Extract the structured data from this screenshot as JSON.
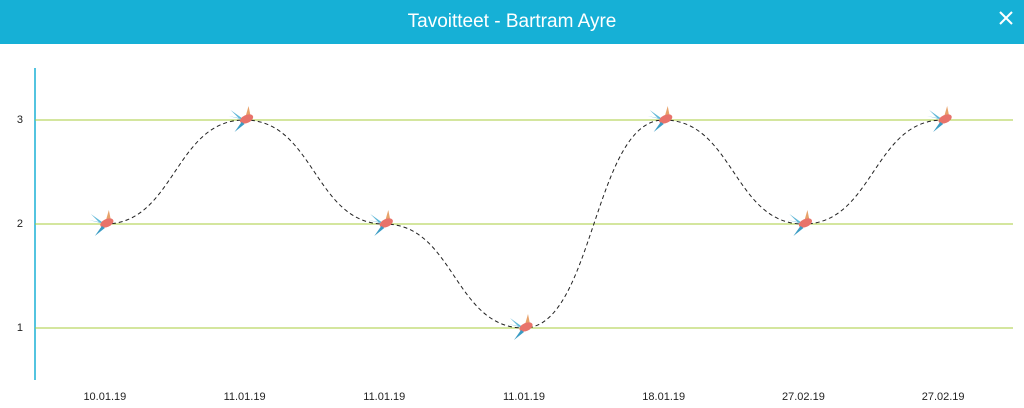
{
  "header": {
    "title": "Tavoitteet - Bartram Ayre"
  },
  "chart_data": {
    "type": "line",
    "categories": [
      "10.01.19",
      "11.01.19",
      "11.01.19",
      "11.01.19",
      "18.01.19",
      "27.02.19",
      "27.02.19"
    ],
    "values": [
      2,
      3,
      2,
      1,
      3,
      2,
      3
    ],
    "color": "#222222",
    "ylim": [
      0.5,
      3.5
    ],
    "yticks": [
      1,
      2,
      3
    ],
    "grid": true
  }
}
